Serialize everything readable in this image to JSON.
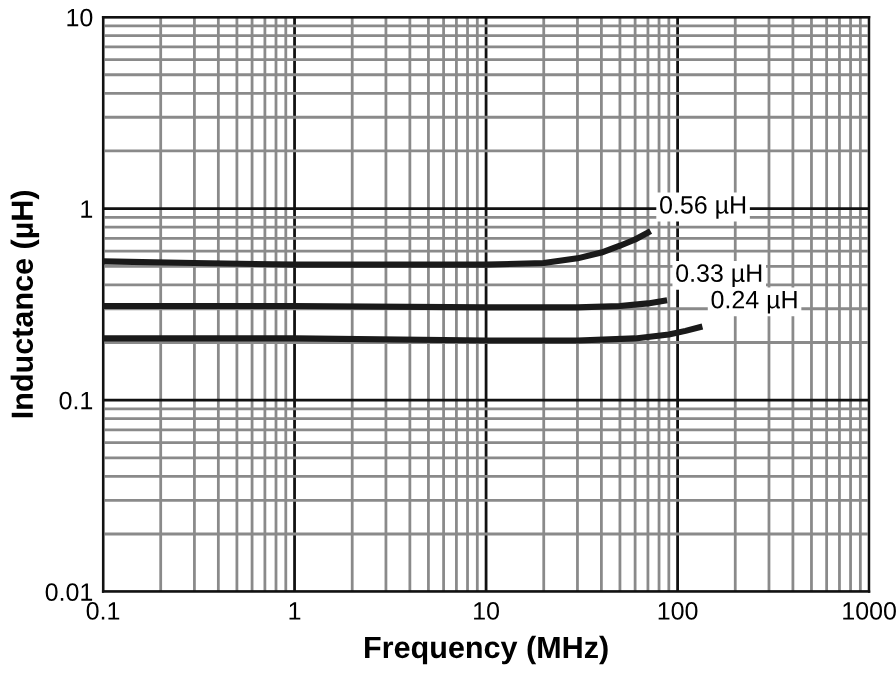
{
  "chart_data": {
    "type": "line",
    "xlabel": "Frequency (MHz)",
    "ylabel": "Inductance (µH)",
    "log": "xy",
    "grid": true,
    "legend": false,
    "marker": "none",
    "line_style": "solid",
    "xlim": [
      0.1,
      1000
    ],
    "xticks": [
      0.1,
      1,
      10,
      100,
      1000
    ],
    "ylim": [
      0.01,
      10
    ],
    "yticks": [
      0.01,
      0.1,
      1,
      10
    ],
    "x": [
      0.1,
      0.3,
      1,
      3,
      10,
      20,
      30,
      40,
      50,
      60,
      70
    ],
    "series": [
      {
        "name": "0.56 µH",
        "color": "#1a1a1a",
        "values": [
          0.53,
          0.52,
          0.51,
          0.51,
          0.51,
          0.52,
          0.55,
          0.59,
          0.64,
          0.69,
          0.75
        ]
      },
      {
        "name": "0.33 µH",
        "color": "#1a1a1a",
        "x": [
          0.1,
          1,
          10,
          30,
          50,
          70,
          85
        ],
        "values": [
          0.31,
          0.31,
          0.305,
          0.305,
          0.31,
          0.32,
          0.33
        ]
      },
      {
        "name": "0.24 µH",
        "color": "#1a1a1a",
        "x": [
          0.1,
          1,
          10,
          30,
          60,
          90,
          110,
          130
        ],
        "values": [
          0.21,
          0.21,
          0.205,
          0.205,
          0.21,
          0.22,
          0.23,
          0.24
        ]
      }
    ]
  }
}
